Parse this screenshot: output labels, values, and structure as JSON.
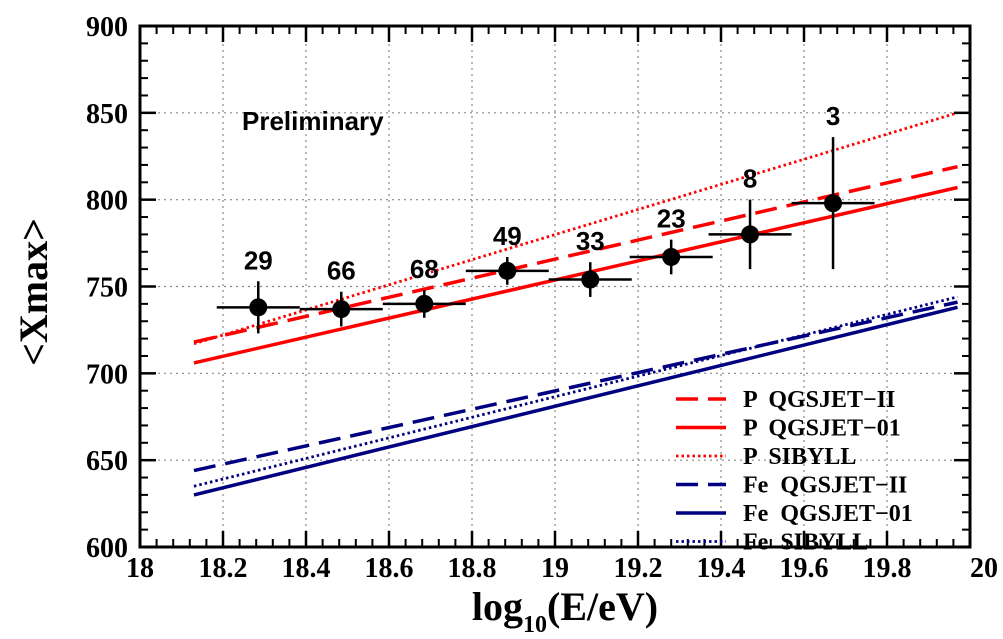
{
  "chart_data": {
    "type": "scatter",
    "title": "",
    "xlabel": "log",
    "xlabel_sub": "10",
    "xlabel_tail": "(E/eV)",
    "ylabel": "<Xmax>",
    "xlim": [
      18,
      20
    ],
    "ylim": [
      600,
      900
    ],
    "x_ticks": [
      "18",
      "18.2",
      "18.4",
      "18.6",
      "18.8",
      "19",
      "19.2",
      "19.4",
      "19.6",
      "19.8",
      "20"
    ],
    "y_ticks": [
      "600",
      "650",
      "700",
      "750",
      "800",
      "850",
      "900"
    ],
    "grid": true,
    "annotation": "Preliminary",
    "data_points": {
      "x": [
        18.285,
        18.485,
        18.685,
        18.885,
        19.085,
        19.28,
        19.47,
        19.67
      ],
      "y": [
        738,
        737,
        740,
        759,
        754,
        767,
        780,
        798
      ],
      "xerr": [
        0.1,
        0.1,
        0.1,
        0.1,
        0.1,
        0.1,
        0.1,
        0.1
      ],
      "yerr": [
        15,
        10,
        8,
        8,
        10,
        10,
        20,
        38
      ],
      "labels": [
        "29",
        "66",
        "68",
        "49",
        "33",
        "23",
        "8",
        "3"
      ]
    },
    "series": [
      {
        "name": "P  QGSJET−II",
        "color": "#ff0000",
        "dash": "dashed",
        "x": [
          18.13,
          19.97
        ],
        "y": [
          718,
          819
        ]
      },
      {
        "name": "P  QGSJET−01",
        "color": "#ff0000",
        "dash": "solid",
        "x": [
          18.13,
          19.97
        ],
        "y": [
          706,
          807
        ]
      },
      {
        "name": "P  SIBYLL",
        "color": "#ff0000",
        "dash": "dotted",
        "x": [
          18.13,
          19.97
        ],
        "y": [
          717,
          850
        ]
      },
      {
        "name": "Fe  QGSJET−II",
        "color": "#000080",
        "dash": "dashed",
        "x": [
          18.13,
          19.97
        ],
        "y": [
          644,
          741
        ]
      },
      {
        "name": "Fe  QGSJET−01",
        "color": "#000080",
        "dash": "solid",
        "x": [
          18.13,
          19.97
        ],
        "y": [
          630,
          738
        ]
      },
      {
        "name": "Fe  SIBYLL",
        "color": "#000080",
        "dash": "dotted",
        "x": [
          18.13,
          19.97
        ],
        "y": [
          635,
          744
        ]
      }
    ],
    "legend_placement": "bottom-right"
  }
}
